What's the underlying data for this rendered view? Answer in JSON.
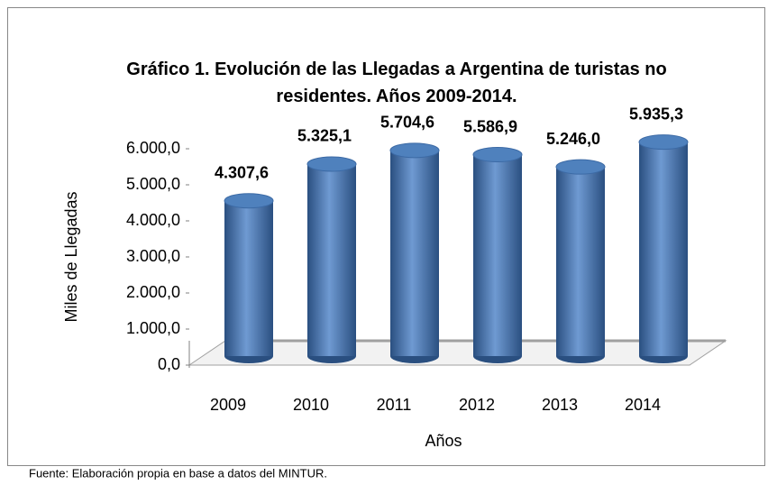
{
  "chart_data": {
    "type": "bar3d",
    "title": "Gráfico 1. Evolución de las Llegadas a Argentina de turistas no residentes. Años 2009-2014.",
    "categories": [
      "2009",
      "2010",
      "2011",
      "2012",
      "2013",
      "2014"
    ],
    "values": [
      4307.6,
      5325.1,
      5704.6,
      5586.9,
      5246.0,
      5935.3
    ],
    "value_labels": [
      "4.307,6",
      "5.325,1",
      "5.704,6",
      "5.586,9",
      "5.246,0",
      "5.935,3"
    ],
    "color": "#4f81bd",
    "ylim": [
      0,
      6000
    ],
    "yticks": [
      {
        "value": 0,
        "label": "0,0"
      },
      {
        "value": 1000,
        "label": "1.000,0"
      },
      {
        "value": 2000,
        "label": "2.000,0"
      },
      {
        "value": 3000,
        "label": "3.000,0"
      },
      {
        "value": 4000,
        "label": "4.000,0"
      },
      {
        "value": 5000,
        "label": "5.000,0"
      },
      {
        "value": 6000,
        "label": "6.000,0"
      }
    ],
    "y_label": "Miles de Llegadas",
    "x_label": "Años",
    "source": "Fuente: Elaboración propia en base a datos del MINTUR.",
    "grid": false
  }
}
